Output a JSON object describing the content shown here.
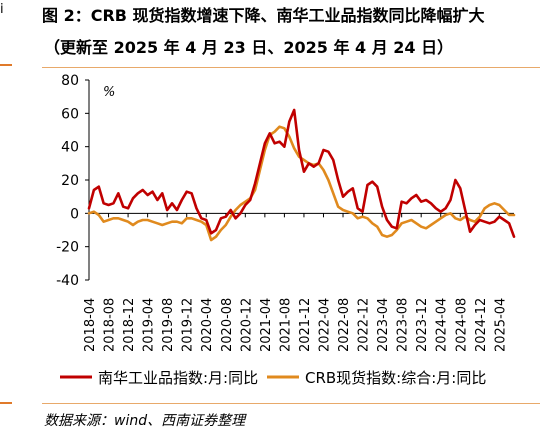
{
  "left_edge_glyph": "i",
  "title": "图 2：CRB 现货指数增速下降、南华工业品指数同比降幅扩大",
  "subtitle": "（更新至 2025 年 4 月 23 日、2025 年 4 月 24 日）",
  "source": "数据来源：wind、西南证券整理",
  "chart_data": {
    "type": "line",
    "unit_label": "%",
    "ylim": [
      -40,
      80
    ],
    "yticks": [
      -40,
      -20,
      0,
      20,
      40,
      60,
      80
    ],
    "xtick_labels": [
      "2018-04",
      "2018-08",
      "2018-12",
      "2019-04",
      "2019-08",
      "2019-12",
      "2020-04",
      "2020-08",
      "2020-12",
      "2021-04",
      "2021-08",
      "2021-12",
      "2022-04",
      "2022-08",
      "2022-12",
      "2023-04",
      "2023-08",
      "2023-12",
      "2024-04",
      "2024-08",
      "2024-12",
      "2025-04"
    ],
    "x_start": "2018-04",
    "grid": false,
    "legend_position": "bottom",
    "series": [
      {
        "name": "南华工业品指数:月:同比",
        "color": "#c00000",
        "values": [
          3,
          14,
          16,
          6,
          5,
          6,
          12,
          4,
          3,
          9,
          12,
          14,
          11,
          13,
          8,
          12,
          2,
          6,
          2,
          8,
          13,
          12,
          3,
          -3,
          -4,
          -12,
          -10,
          -3,
          -2,
          2,
          -3,
          0,
          5,
          8,
          18,
          30,
          42,
          48,
          42,
          43,
          40,
          55,
          62,
          38,
          25,
          30,
          28,
          30,
          38,
          37,
          32,
          20,
          10,
          13,
          15,
          3,
          1,
          17,
          19,
          16,
          4,
          -4,
          -8,
          -9,
          7,
          6,
          9,
          11,
          7,
          8,
          6,
          3,
          1,
          3,
          8,
          20,
          15,
          2,
          -11,
          -7,
          -4,
          -5,
          -6,
          -5,
          -2,
          -4,
          -6,
          -14
        ]
      },
      {
        "name": "CRB现货指数:综合:月:同比",
        "color": "#e08a1e",
        "values": [
          0,
          1,
          -1,
          -5,
          -4,
          -3,
          -3,
          -4,
          -5,
          -7,
          -5,
          -4,
          -4,
          -5,
          -6,
          -7,
          -6,
          -5,
          -5,
          -6,
          -3,
          -3,
          -4,
          -5,
          -7,
          -16,
          -14,
          -10,
          -7,
          -2,
          2,
          5,
          7,
          9,
          14,
          26,
          38,
          47,
          49,
          52,
          51,
          46,
          39,
          34,
          32,
          30,
          29,
          30,
          26,
          20,
          12,
          4,
          2,
          1,
          0,
          -3,
          -2,
          -3,
          -6,
          -8,
          -13,
          -14,
          -13,
          -10,
          -6,
          -5,
          -4,
          -6,
          -8,
          -9,
          -7,
          -5,
          -3,
          -1,
          0,
          -3,
          -4,
          -2,
          -4,
          -5,
          -2,
          3,
          5,
          6,
          5,
          2,
          -1,
          -1
        ]
      }
    ]
  }
}
